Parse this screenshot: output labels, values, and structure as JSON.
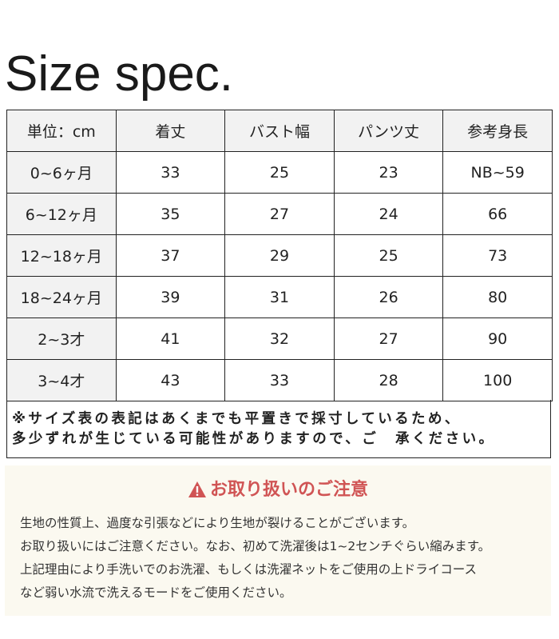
{
  "title": "Size spec.",
  "table": {
    "headers": [
      "単位：cm",
      "着丈",
      "バスト幅",
      "パンツ丈",
      "参考身長"
    ],
    "rows": [
      [
        "0~6ヶ月",
        "33",
        "25",
        "23",
        "NB~59"
      ],
      [
        "6~12ヶ月",
        "35",
        "27",
        "24",
        "66"
      ],
      [
        "12~18ヶ月",
        "37",
        "29",
        "25",
        "73"
      ],
      [
        "18~24ヶ月",
        "39",
        "31",
        "26",
        "80"
      ],
      [
        "2~3才",
        "41",
        "32",
        "27",
        "90"
      ],
      [
        "3~4才",
        "43",
        "33",
        "28",
        "100"
      ]
    ]
  },
  "note": {
    "lines": [
      "※サイズ表の表記はあくまでも平置きで採寸しているため、",
      "多少ずれが生じている可能性がありますので、ご　承ください。"
    ]
  },
  "caution": {
    "icon": "warning-icon",
    "accent_color": "#d05454",
    "heading": "お取り扱いのご注意",
    "lines": [
      "生地の性質上、過度な引張などにより生地が裂けることがございます。",
      "お取り扱いにはご注意ください。なお、初めて洗濯後は1~2センチぐらい縮みます。",
      "上記理由により手洗いでのお洗濯、もしくは洗濯ネットをご使用の上ドライコース",
      "など弱い水流で洗えるモードをご使用ください。"
    ]
  }
}
